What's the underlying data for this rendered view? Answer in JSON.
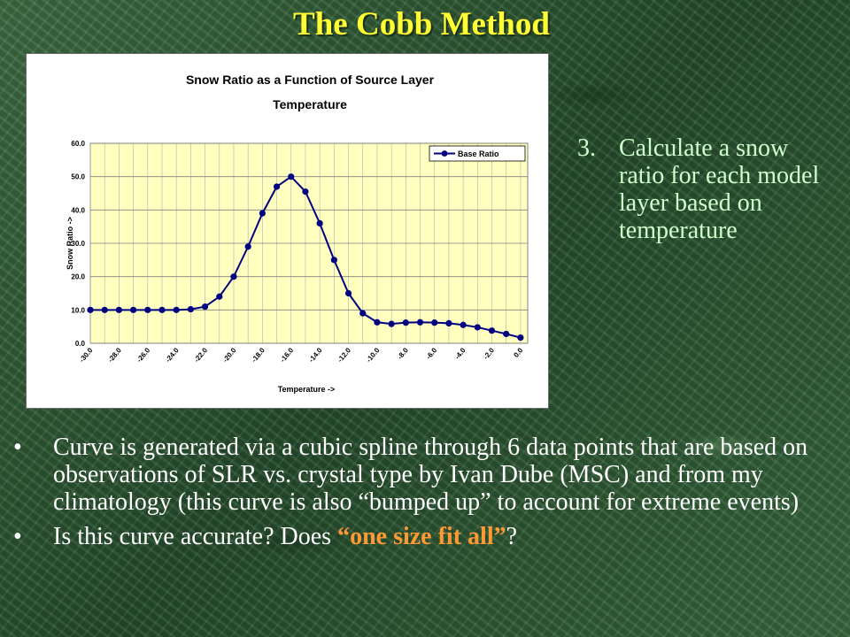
{
  "slide": {
    "title": "The Cobb Method",
    "step": {
      "number": "3.",
      "text": "Calculate a snow ratio for each model layer based on temperature"
    },
    "bullets": [
      {
        "marker": "•",
        "text": "Curve is generated via a cubic spline through 6 data points that are based on observations of SLR vs. crystal type by Ivan Dube (MSC) and from my climatology (this curve is also “bumped up” to account for extreme events)"
      },
      {
        "marker": "•",
        "text_before": "Is this curve accurate? Does ",
        "highlight": "“one size fit all”",
        "text_after": "?"
      }
    ]
  },
  "colors": {
    "title": "#ffff33",
    "step_text": "#ccffcc",
    "highlight": "#ff9933",
    "plot_area": "#ffffc0",
    "series": "#000080"
  },
  "chart_data": {
    "type": "line",
    "title": "Snow Ratio as a Function of Source Layer Temperature",
    "title_lines": [
      "Snow Ratio as a Function of Source Layer",
      "Temperature"
    ],
    "xlabel": "Temperature ->",
    "ylabel": "Snow Ratio ->",
    "xlim": [
      -30,
      0.5
    ],
    "ylim": [
      0,
      60
    ],
    "yticks": [
      "0.0",
      "10.0",
      "20.0",
      "30.0",
      "40.0",
      "50.0",
      "60.0"
    ],
    "xticks": [
      "-30.0",
      "-28.0",
      "-26.0",
      "-24.0",
      "-22.0",
      "-20.0",
      "-18.0",
      "-16.0",
      "-14.0",
      "-12.0",
      "-10.0",
      "-8.0",
      "-6.0",
      "-4.0",
      "-2.0",
      "0.0"
    ],
    "grid": true,
    "legend": "top-right",
    "series": [
      {
        "name": "Base Ratio",
        "x": [
          -30,
          -29,
          -28,
          -27,
          -26,
          -25,
          -24,
          -23,
          -22,
          -21,
          -20,
          -19,
          -18,
          -17,
          -16,
          -15,
          -14,
          -13,
          -12,
          -11,
          -10,
          -9,
          -8,
          -7,
          -6,
          -5,
          -4,
          -3,
          -2,
          -1,
          0
        ],
        "y": [
          10,
          10,
          10,
          10,
          10,
          10,
          10,
          10.2,
          11,
          14,
          20,
          29,
          39,
          47,
          50,
          45.5,
          36,
          25,
          15,
          9,
          6.3,
          5.8,
          6.2,
          6.3,
          6.2,
          6,
          5.5,
          4.8,
          3.8,
          2.8,
          1.7
        ]
      }
    ]
  }
}
